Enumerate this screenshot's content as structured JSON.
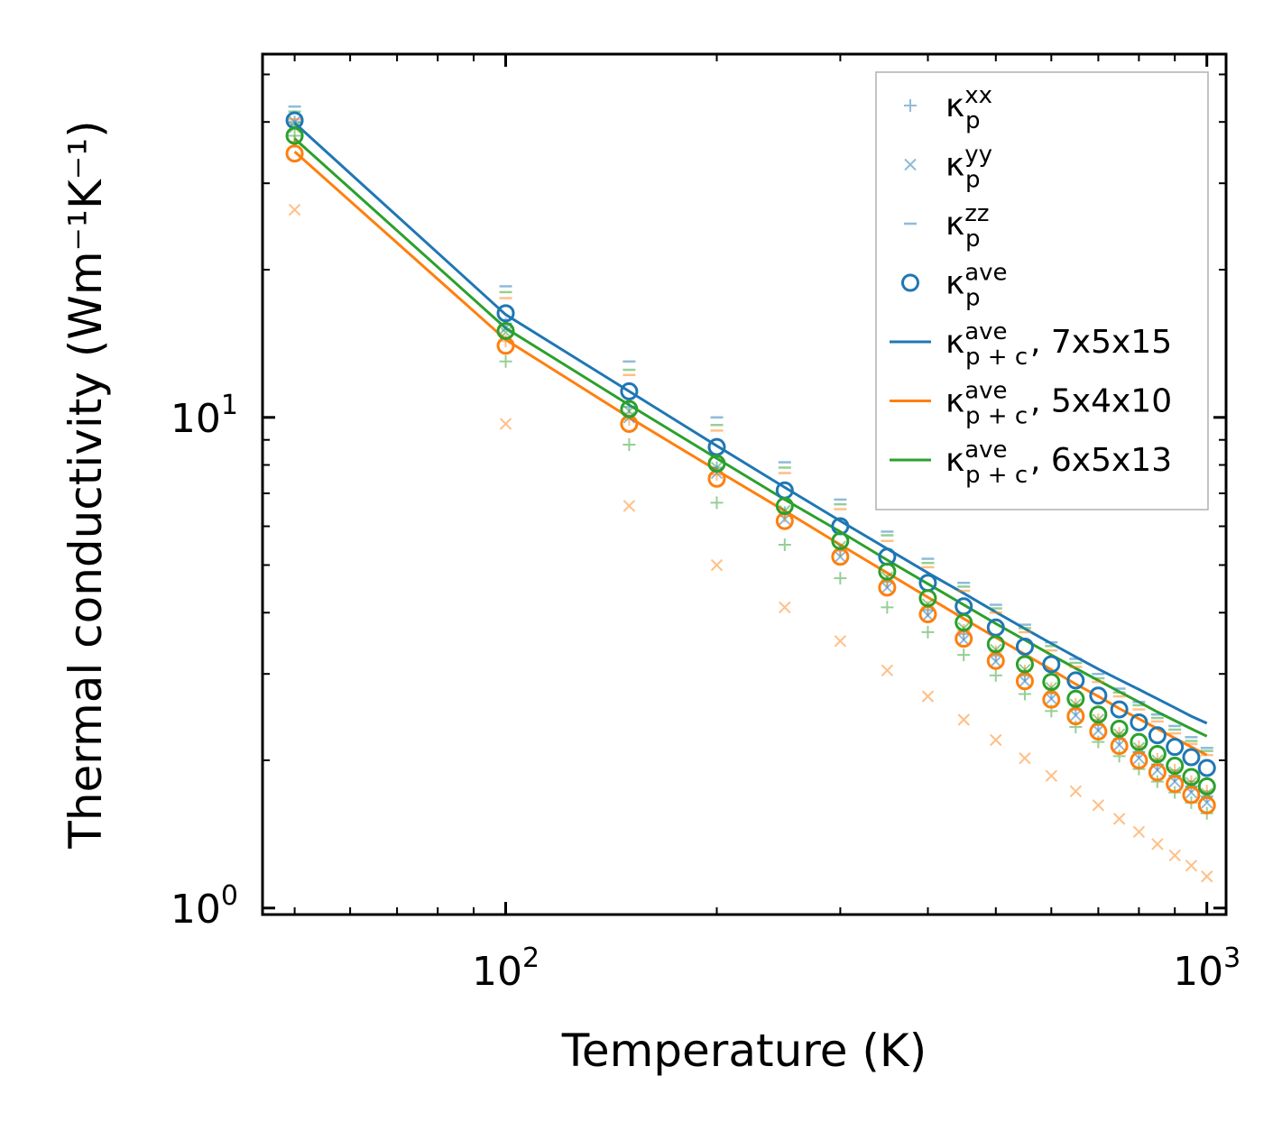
{
  "chart_data": {
    "type": "scatter",
    "scale": "log-log",
    "xlabel": "Temperature (K)",
    "ylabel": "Thermal conductivity (Wm⁻¹K⁻¹)",
    "xlim": [
      45,
      1065
    ],
    "ylim": [
      0.97,
      55
    ],
    "x_ticks": [
      {
        "value": 100,
        "base": "10",
        "exp": "2"
      },
      {
        "value": 1000,
        "base": "10",
        "exp": "3"
      }
    ],
    "y_ticks": [
      {
        "value": 1,
        "base": "10",
        "exp": "0"
      },
      {
        "value": 10,
        "base": "10",
        "exp": "1"
      }
    ],
    "colors": {
      "blue": "#1f77b4",
      "orange": "#ff7f0e",
      "green": "#2ca02c"
    },
    "x": [
      50,
      100,
      150,
      200,
      250,
      300,
      350,
      400,
      450,
      500,
      550,
      600,
      650,
      700,
      750,
      800,
      850,
      900,
      950,
      1000
    ],
    "scatter_series": [
      {
        "name": "kxx_blue",
        "color": "blue",
        "marker": "plus",
        "values": [
          40,
          15.5,
          10.5,
          7.9,
          6.4,
          5.35,
          4.62,
          4.05,
          3.62,
          3.27,
          2.98,
          2.74,
          2.54,
          2.36,
          2.21,
          2.08,
          1.96,
          1.86,
          1.77,
          1.69
        ]
      },
      {
        "name": "kyy_blue",
        "color": "blue",
        "marker": "x",
        "values": [
          40,
          15.2,
          10.0,
          7.7,
          6.2,
          5.2,
          4.5,
          3.95,
          3.52,
          3.18,
          2.9,
          2.67,
          2.47,
          2.3,
          2.15,
          2.02,
          1.91,
          1.81,
          1.72,
          1.64
        ]
      },
      {
        "name": "kzz_blue",
        "color": "blue",
        "marker": "dash",
        "values": [
          43,
          18.5,
          13.0,
          10.0,
          8.1,
          6.8,
          5.85,
          5.15,
          4.6,
          4.15,
          3.78,
          3.48,
          3.22,
          3.0,
          2.8,
          2.63,
          2.48,
          2.35,
          2.23,
          2.12
        ]
      },
      {
        "name": "kxx_orange",
        "color": "orange",
        "marker": "plus",
        "values": [
          36.5,
          14.3,
          9.9,
          7.65,
          6.3,
          5.35,
          4.65,
          4.1,
          3.68,
          3.33,
          3.04,
          2.8,
          2.6,
          2.42,
          2.27,
          2.13,
          2.01,
          1.91,
          1.81,
          1.73
        ]
      },
      {
        "name": "kyy_orange",
        "color": "orange",
        "marker": "x",
        "values": [
          26.5,
          9.7,
          6.6,
          5.0,
          4.1,
          3.5,
          3.05,
          2.7,
          2.42,
          2.2,
          2.02,
          1.86,
          1.73,
          1.62,
          1.52,
          1.43,
          1.35,
          1.28,
          1.22,
          1.16
        ]
      },
      {
        "name": "kzz_orange",
        "color": "orange",
        "marker": "dash",
        "values": [
          40.5,
          17.5,
          12.2,
          9.4,
          7.7,
          6.5,
          5.6,
          4.95,
          4.43,
          4.0,
          3.65,
          3.35,
          3.1,
          2.89,
          2.7,
          2.54,
          2.4,
          2.27,
          2.16,
          2.05
        ]
      },
      {
        "name": "kxx_green",
        "color": "green",
        "marker": "plus",
        "values": [
          37.5,
          13.0,
          8.8,
          6.7,
          5.5,
          4.7,
          4.1,
          3.65,
          3.28,
          2.98,
          2.73,
          2.52,
          2.34,
          2.18,
          2.04,
          1.92,
          1.81,
          1.72,
          1.64,
          1.56
        ]
      },
      {
        "name": "kyy_green",
        "color": "green",
        "marker": "x",
        "values": [
          39,
          14.9,
          10.3,
          7.9,
          6.45,
          5.45,
          4.72,
          4.16,
          3.72,
          3.36,
          3.06,
          2.81,
          2.6,
          2.42,
          2.26,
          2.12,
          2.0,
          1.89,
          1.8,
          1.71
        ]
      },
      {
        "name": "kzz_green",
        "color": "green",
        "marker": "dash",
        "values": [
          42,
          18.0,
          12.5,
          9.65,
          7.9,
          6.65,
          5.75,
          5.05,
          4.52,
          4.08,
          3.72,
          3.42,
          3.16,
          2.94,
          2.75,
          2.59,
          2.44,
          2.31,
          2.19,
          2.09
        ]
      }
    ],
    "circle_series": [
      {
        "name": "kave_blue",
        "color": "blue",
        "values": [
          40.3,
          16.3,
          11.3,
          8.7,
          7.1,
          6.0,
          5.2,
          4.6,
          4.12,
          3.73,
          3.41,
          3.14,
          2.91,
          2.71,
          2.54,
          2.39,
          2.25,
          2.13,
          2.03,
          1.93
        ]
      },
      {
        "name": "kave_orange",
        "color": "orange",
        "values": [
          34.5,
          14.0,
          9.7,
          7.5,
          6.15,
          5.2,
          4.5,
          3.97,
          3.54,
          3.19,
          2.9,
          2.66,
          2.46,
          2.29,
          2.14,
          2.0,
          1.89,
          1.79,
          1.7,
          1.62
        ]
      },
      {
        "name": "kave_green",
        "color": "green",
        "values": [
          37.5,
          15.0,
          10.4,
          8.05,
          6.6,
          5.6,
          4.85,
          4.28,
          3.82,
          3.45,
          3.14,
          2.89,
          2.67,
          2.48,
          2.32,
          2.18,
          2.06,
          1.95,
          1.85,
          1.77
        ]
      }
    ],
    "line_series": [
      {
        "name": "kpc_blue",
        "color": "blue",
        "values": [
          39.8,
          16.2,
          11.3,
          8.75,
          7.2,
          6.15,
          5.4,
          4.82,
          4.38,
          4.01,
          3.71,
          3.46,
          3.25,
          3.07,
          2.92,
          2.79,
          2.67,
          2.56,
          2.46,
          2.38
        ]
      },
      {
        "name": "kpc_orange",
        "color": "orange",
        "values": [
          34.8,
          14.4,
          10.0,
          7.8,
          6.45,
          5.5,
          4.82,
          4.3,
          3.89,
          3.56,
          3.29,
          3.06,
          2.86,
          2.7,
          2.55,
          2.43,
          2.32,
          2.22,
          2.13,
          2.05
        ]
      },
      {
        "name": "kpc_green",
        "color": "green",
        "values": [
          37.0,
          15.2,
          10.6,
          8.25,
          6.8,
          5.85,
          5.12,
          4.58,
          4.15,
          3.8,
          3.52,
          3.28,
          3.08,
          2.91,
          2.76,
          2.63,
          2.51,
          2.41,
          2.32,
          2.24
        ]
      }
    ],
    "legend": {
      "placement": "top-right",
      "entries": [
        {
          "kind": "plus",
          "color": "#1f77b4",
          "symbol": "κ",
          "sub": "p",
          "sup": "xx",
          "suffix": ""
        },
        {
          "kind": "x",
          "color": "#1f77b4",
          "symbol": "κ",
          "sub": "p",
          "sup": "yy",
          "suffix": ""
        },
        {
          "kind": "dash",
          "color": "#1f77b4",
          "symbol": "κ",
          "sub": "p",
          "sup": "zz",
          "suffix": ""
        },
        {
          "kind": "circle",
          "color": "#1f77b4",
          "symbol": "κ",
          "sub": "p",
          "sup": "ave",
          "suffix": ""
        },
        {
          "kind": "line",
          "color": "#1f77b4",
          "symbol": "κ",
          "sub": "p + c",
          "sup": "ave",
          "suffix": ", 7x5x15"
        },
        {
          "kind": "line",
          "color": "#ff7f0e",
          "symbol": "κ",
          "sub": "p + c",
          "sup": "ave",
          "suffix": ", 5x4x10"
        },
        {
          "kind": "line",
          "color": "#2ca02c",
          "symbol": "κ",
          "sub": "p + c",
          "sup": "ave",
          "suffix": ", 6x5x13"
        }
      ]
    }
  }
}
